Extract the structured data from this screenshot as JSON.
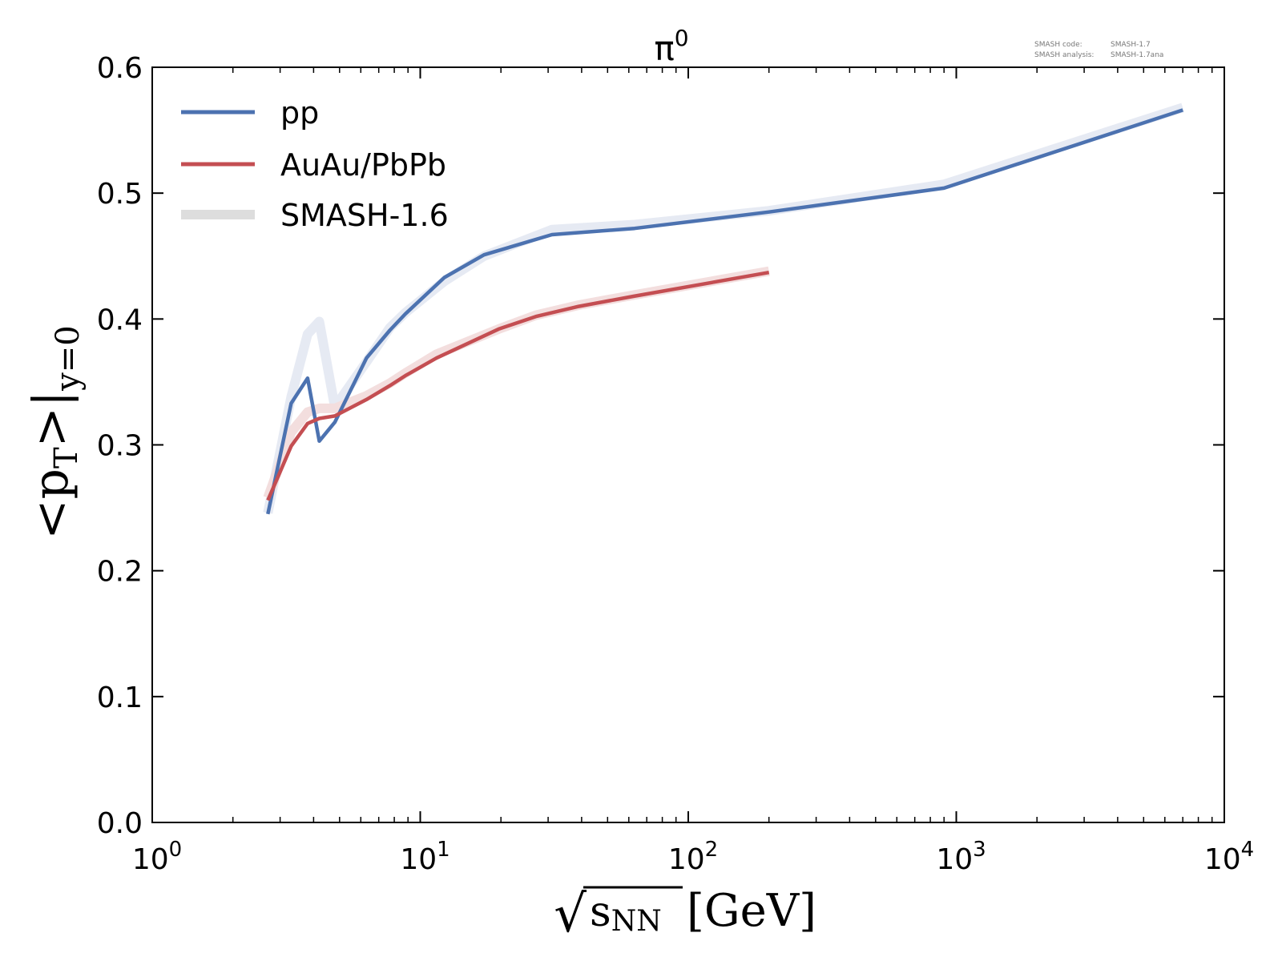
{
  "chart_data": {
    "type": "line",
    "title": "π",
    "title_superscript": "0",
    "xscale": "log",
    "xlim": [
      1,
      10000
    ],
    "ylim": [
      0.0,
      0.6
    ],
    "xlabel": "[GeV]",
    "xlabel_sqrt_symbol": "√",
    "xlabel_var": "s",
    "xlabel_var_sub": "NN",
    "ylabel": "<p",
    "ylabel_sub_T": "T",
    "ylabel_mid": ">|",
    "ylabel_sub_y": "y=0",
    "x_ticks": [
      {
        "value": 1,
        "base": "10",
        "exp": "0"
      },
      {
        "value": 10,
        "base": "10",
        "exp": "1"
      },
      {
        "value": 100,
        "base": "10",
        "exp": "2"
      },
      {
        "value": 1000,
        "base": "10",
        "exp": "3"
      },
      {
        "value": 10000,
        "base": "10",
        "exp": "4"
      }
    ],
    "y_ticks": [
      "0.0",
      "0.1",
      "0.2",
      "0.3",
      "0.4",
      "0.5",
      "0.6"
    ],
    "legend_position": "top-left",
    "series": [
      {
        "name": "pp",
        "color": "#4c72b0",
        "x": [
          2.7,
          3.3,
          3.8,
          4.2,
          4.8,
          6.3,
          7.7,
          8.8,
          12.3,
          17.3,
          31,
          63,
          200,
          900,
          7000
        ],
        "y": [
          0.245,
          0.333,
          0.353,
          0.303,
          0.318,
          0.369,
          0.391,
          0.404,
          0.433,
          0.451,
          0.467,
          0.472,
          0.485,
          0.504,
          0.566
        ]
      },
      {
        "name": "AuAu/PbPb",
        "color": "#c44e52",
        "x": [
          2.7,
          3.3,
          3.8,
          4.2,
          4.8,
          6.3,
          7.7,
          8.8,
          11.5,
          19.6,
          27,
          39,
          62.4,
          200
        ],
        "y": [
          0.256,
          0.299,
          0.317,
          0.321,
          0.323,
          0.336,
          0.347,
          0.355,
          0.369,
          0.392,
          0.402,
          0.41,
          0.418,
          0.437
        ]
      }
    ],
    "reference": {
      "name": "SMASH-1.6",
      "color": "#dddddd",
      "series": [
        {
          "of": "pp",
          "color": "#e6eaf3",
          "x": [
            2.7,
            3.3,
            3.8,
            4.2,
            4.8,
            6.3,
            7.7,
            8.8,
            12.3,
            17.3,
            31,
            63,
            200,
            900,
            7000
          ],
          "y": [
            0.246,
            0.338,
            0.388,
            0.398,
            0.33,
            0.366,
            0.393,
            0.405,
            0.43,
            0.45,
            0.471,
            0.475,
            0.486,
            0.507,
            0.568
          ]
        },
        {
          "of": "AuAu/PbPb",
          "color": "#f3dede",
          "x": [
            2.7,
            3.3,
            3.8,
            4.2,
            4.8,
            6.3,
            7.7,
            8.8,
            11.5,
            19.6,
            27,
            39,
            62.4,
            200
          ],
          "y": [
            0.258,
            0.31,
            0.326,
            0.329,
            0.329,
            0.339,
            0.349,
            0.357,
            0.372,
            0.392,
            0.403,
            0.411,
            0.419,
            0.438
          ]
        }
      ]
    },
    "annotation": {
      "line1_label": "SMASH code:",
      "line1_value": "SMASH-1.7",
      "line2_label": "SMASH analysis:",
      "line2_value": "SMASH-1.7ana"
    }
  }
}
